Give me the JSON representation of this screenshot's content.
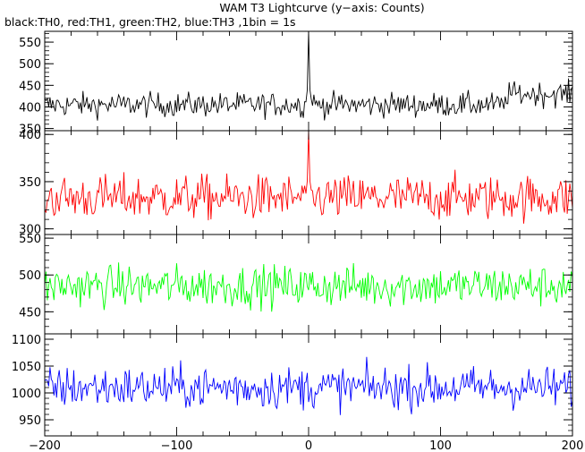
{
  "chart_data": {
    "type": "line",
    "title": "WAM T3 Lightcurve (y−axis: Counts)",
    "subtitle": "black:TH0, red:TH1, green:TH2, blue:TH3 ,1bin = 1s",
    "xlim": [
      -200,
      200
    ],
    "x_ticks": [
      -200,
      -100,
      0,
      100,
      200
    ],
    "x_tick_labels": [
      "−200",
      "−100",
      "0",
      "100",
      "200"
    ],
    "bin_width": 1,
    "grid": false,
    "panels": [
      {
        "color": "#000000",
        "ylim": [
          345,
          575
        ],
        "y_ticks": [
          350,
          400,
          450,
          500,
          550
        ],
        "mean": 405,
        "noise": 20,
        "burst": {
          "x": 0,
          "peak": 575
        },
        "feature": {
          "x_start": 150,
          "x_end": 200,
          "level": 430
        }
      },
      {
        "color": "#ff0000",
        "ylim": [
          294,
          404
        ],
        "y_ticks": [
          300,
          350,
          400
        ],
        "mean": 333,
        "noise": 17,
        "burst": {
          "x": 0,
          "peak": 404
        }
      },
      {
        "color": "#00ff00",
        "ylim": [
          420,
          555
        ],
        "y_ticks": [
          450,
          500,
          550
        ],
        "mean": 485,
        "noise": 20,
        "burst": null
      },
      {
        "color": "#0000ff",
        "ylim": [
          920,
          1110
        ],
        "y_ticks": [
          950,
          1000,
          1050,
          1100
        ],
        "mean": 1010,
        "noise": 28,
        "burst": null
      }
    ]
  }
}
